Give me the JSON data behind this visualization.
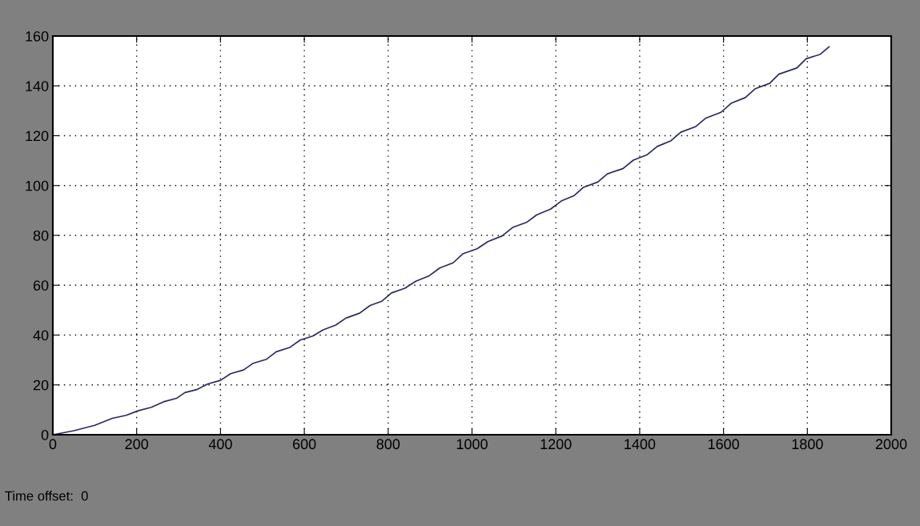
{
  "chart_data": {
    "type": "line",
    "xlim": [
      0,
      2000
    ],
    "ylim": [
      0,
      160
    ],
    "xticks": [
      0,
      200,
      400,
      600,
      800,
      1000,
      1200,
      1400,
      1600,
      1800,
      2000
    ],
    "yticks": [
      0,
      20,
      40,
      60,
      80,
      100,
      120,
      140,
      160
    ],
    "grid": true,
    "annotations": [
      "Time offset:  0"
    ],
    "series": [
      {
        "color": "#2a2a60",
        "x": [
          0,
          50,
          100,
          142,
          175,
          203,
          235,
          264,
          295,
          315,
          345,
          370,
          400,
          424,
          455,
          478,
          510,
          533,
          565,
          590,
          620,
          645,
          675,
          699,
          732,
          757,
          785,
          808,
          840,
          866,
          898,
          923,
          955,
          978,
          1012,
          1038,
          1072,
          1097,
          1130,
          1154,
          1188,
          1213,
          1244,
          1266,
          1300,
          1323,
          1360,
          1385,
          1418,
          1442,
          1475,
          1498,
          1533,
          1558,
          1594,
          1618,
          1652,
          1676,
          1710,
          1732,
          1775,
          1797,
          1830,
          1852
        ],
        "values": [
          0,
          1.6,
          3.8,
          6.6,
          7.8,
          9.6,
          11.0,
          13.2,
          14.6,
          16.9,
          18.2,
          20.4,
          21.8,
          24.5,
          26.0,
          28.7,
          30.3,
          33.3,
          35.0,
          38.0,
          39.6,
          42.1,
          44.0,
          46.8,
          48.8,
          51.9,
          53.6,
          56.9,
          58.8,
          61.6,
          63.8,
          66.9,
          69.0,
          72.6,
          74.6,
          77.5,
          79.8,
          83.2,
          85.2,
          88.2,
          90.6,
          93.8,
          96.0,
          99.3,
          101.4,
          104.7,
          106.8,
          110.2,
          112.4,
          115.7,
          118.0,
          121.4,
          123.6,
          127.1,
          129.4,
          133.0,
          135.3,
          138.9,
          141.0,
          144.7,
          147.2,
          150.9,
          152.6,
          155.7
        ]
      }
    ]
  }
}
